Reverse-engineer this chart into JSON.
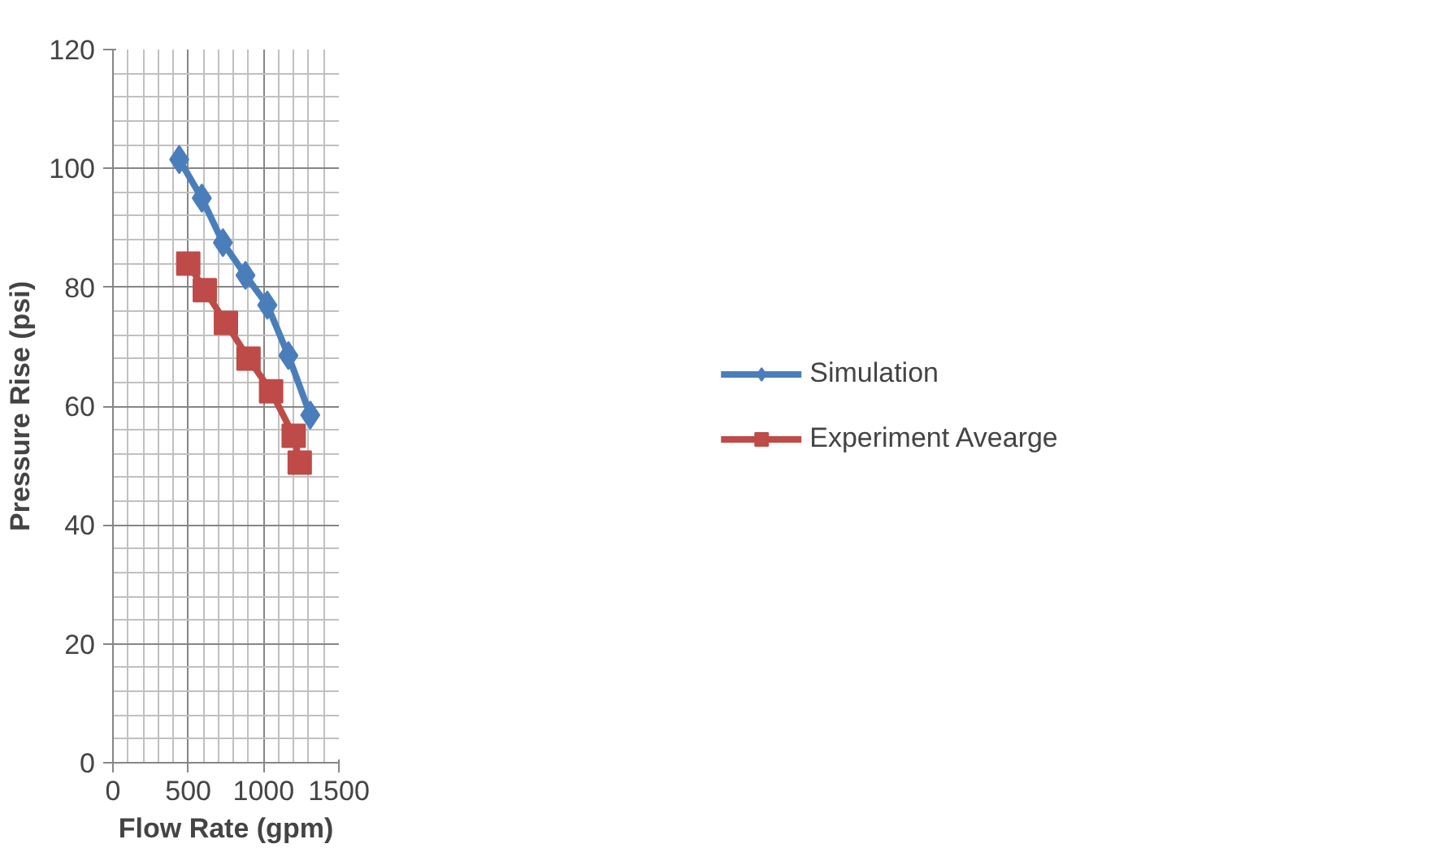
{
  "chart_data": {
    "type": "line",
    "xlabel": "Flow Rate (gpm)",
    "ylabel": "Pressure Rise (psi)",
    "xlim": [
      0,
      1500
    ],
    "ylim": [
      0,
      120
    ],
    "xticks": [
      0,
      {
        "value": 100,
        "label": null
      },
      {
        "value": 200,
        "label": null
      },
      {
        "value": 300,
        "label": null
      },
      {
        "value": 400,
        "label": null
      },
      500,
      {
        "value": 600,
        "label": null
      },
      {
        "value": 700,
        "label": null
      },
      {
        "value": 800,
        "label": null
      },
      {
        "value": 900,
        "label": null
      },
      1000,
      {
        "value": 1100,
        "label": null
      },
      {
        "value": 1200,
        "label": null
      },
      {
        "value": 1300,
        "label": null
      },
      {
        "value": 1400,
        "label": null
      },
      1500
    ],
    "yticks": [
      0,
      {
        "value": 4,
        "label": null
      },
      {
        "value": 8,
        "label": null
      },
      {
        "value": 12,
        "label": null
      },
      {
        "value": 16,
        "label": null
      },
      20,
      {
        "value": 24,
        "label": null
      },
      {
        "value": 28,
        "label": null
      },
      {
        "value": 32,
        "label": null
      },
      {
        "value": 36,
        "label": null
      },
      40,
      {
        "value": 44,
        "label": null
      },
      {
        "value": 48,
        "label": null
      },
      {
        "value": 52,
        "label": null
      },
      {
        "value": 56,
        "label": null
      },
      60,
      {
        "value": 64,
        "label": null
      },
      {
        "value": 68,
        "label": null
      },
      {
        "value": 72,
        "label": null
      },
      {
        "value": 76,
        "label": null
      },
      80,
      {
        "value": 84,
        "label": null
      },
      {
        "value": 88,
        "label": null
      },
      {
        "value": 92,
        "label": null
      },
      {
        "value": 96,
        "label": null
      },
      100,
      {
        "value": 104,
        "label": null
      },
      {
        "value": 108,
        "label": null
      },
      {
        "value": 112,
        "label": null
      },
      {
        "value": 116,
        "label": null
      },
      120
    ],
    "grid": true,
    "legend": "right",
    "series": [
      {
        "name": "Simulation",
        "color": "#4a7ebb",
        "marker": "diamond",
        "x": [
          440,
          590,
          730,
          880,
          1025,
          1165,
          1310
        ],
        "values": [
          101.5,
          95,
          87.5,
          82,
          77,
          68.5,
          58.5
        ]
      },
      {
        "name": "Experiment Avearge",
        "color": "#be4b48",
        "marker": "square",
        "x": [
          500,
          610,
          750,
          900,
          1050,
          1200,
          1240
        ],
        "values": [
          84,
          79.5,
          74,
          68,
          62.5,
          55,
          50.5
        ]
      }
    ]
  }
}
